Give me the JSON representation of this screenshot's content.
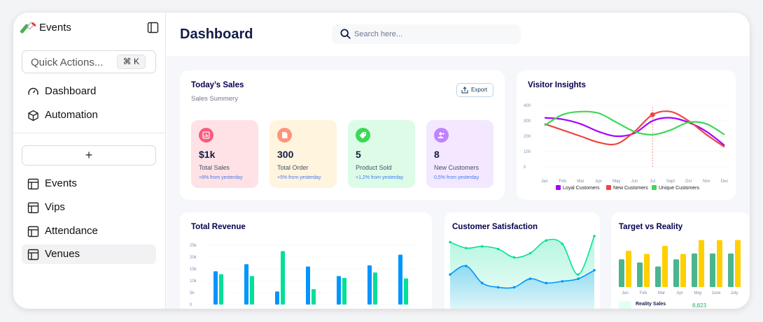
{
  "app": {
    "title": "Events"
  },
  "sidebar": {
    "quick_actions": {
      "label": "Quick Actions...",
      "shortcut": "⌘ K"
    },
    "top_items": [
      {
        "label": "Dashboard",
        "icon": "gauge-icon"
      },
      {
        "label": "Automation",
        "icon": "cube-icon"
      }
    ],
    "add_label": "+",
    "tables": [
      {
        "label": "Events",
        "icon": "table-icon"
      },
      {
        "label": "Vips",
        "icon": "table-icon"
      },
      {
        "label": "Attendance",
        "icon": "table-icon"
      },
      {
        "label": "Venues",
        "icon": "table-icon",
        "active": true
      }
    ]
  },
  "header": {
    "title": "Dashboard",
    "search_placeholder": "Search here..."
  },
  "todays_sales": {
    "title": "Today’s Sales",
    "subtitle": "Sales Summery",
    "export_label": "Export",
    "stats": [
      {
        "value": "$1k",
        "label": "Total Sales",
        "change": "+8% from yesterday",
        "bg": "#ffe2e5",
        "icon_bg": "#fa5a7d",
        "icon": "chart-icon"
      },
      {
        "value": "300",
        "label": "Total Order",
        "change": "+5% from yesterday",
        "bg": "#fff4de",
        "icon_bg": "#ff947a",
        "icon": "document-icon"
      },
      {
        "value": "5",
        "label": "Product Sold",
        "change": "+1,2% from yesterday",
        "bg": "#dcfce7",
        "icon_bg": "#3cd856",
        "icon": "tag-icon"
      },
      {
        "value": "8",
        "label": "New Customers",
        "change": "0,5% from yesterday",
        "bg": "#f3e8ff",
        "icon_bg": "#bf83ff",
        "icon": "user-add-icon"
      }
    ]
  },
  "visitor_insights": {
    "title": "Visitor Insights",
    "chart_data": {
      "type": "line",
      "x": [
        "Jan",
        "Feb",
        "Mar",
        "Apr",
        "May",
        "Jun",
        "Jul",
        "Sept",
        "Oct",
        "Nov",
        "Dec"
      ],
      "ylim": [
        0,
        400
      ],
      "yticks": [
        "400",
        "300",
        "200",
        "100",
        "0"
      ],
      "series": [
        {
          "name": "Loyal Customers",
          "color": "#a700ff",
          "values": [
            320,
            310,
            280,
            230,
            200,
            220,
            300,
            320,
            290,
            230,
            140
          ]
        },
        {
          "name": "New Customers",
          "color": "#ef4444",
          "values": [
            280,
            240,
            200,
            160,
            150,
            230,
            340,
            360,
            300,
            210,
            130
          ]
        },
        {
          "name": "Unique Customers",
          "color": "#3cd856",
          "values": [
            270,
            340,
            360,
            350,
            290,
            230,
            210,
            240,
            290,
            280,
            210
          ]
        }
      ]
    }
  },
  "total_revenue": {
    "title": "Total Revenue",
    "chart_data": {
      "type": "bar",
      "ylim": [
        0,
        25000
      ],
      "yticks": [
        "25k",
        "20k",
        "15k",
        "10k",
        "5k",
        "0"
      ],
      "series": [
        {
          "color": "#0095ff",
          "values": [
            14000,
            17000,
            5500,
            16000,
            12000,
            16500,
            21000
          ]
        },
        {
          "color": "#00e096",
          "values": [
            12800,
            12000,
            22500,
            6500,
            11200,
            13500,
            11000
          ]
        }
      ]
    }
  },
  "customer_satisfaction": {
    "title": "Customer Satisfaction",
    "chart_data": {
      "type": "area",
      "series": [
        {
          "color": "#07e098",
          "values": [
            88,
            81,
            83,
            80,
            70,
            75,
            90,
            86,
            50,
            95
          ]
        },
        {
          "color": "#0095ff",
          "values": [
            50,
            60,
            40,
            35,
            35,
            45,
            40,
            42,
            45,
            55
          ]
        }
      ]
    }
  },
  "target_vs_reality": {
    "title": "Target vs Reality",
    "chart_data": {
      "type": "bar",
      "categories": [
        "Jan",
        "Feb",
        "Mar",
        "Apr",
        "May",
        "June",
        "July"
      ],
      "series": [
        {
          "color": "#4ab58e",
          "values": [
            6.2,
            5.5,
            4.6,
            6.2,
            7.5,
            7.5,
            7.5
          ]
        },
        {
          "color": "#ffcf00",
          "values": [
            8.1,
            7.4,
            9.2,
            7.4,
            10.5,
            10.5,
            10.5
          ]
        }
      ]
    },
    "legend": [
      {
        "label": "Reality Sales",
        "value": "8,823"
      }
    ]
  }
}
